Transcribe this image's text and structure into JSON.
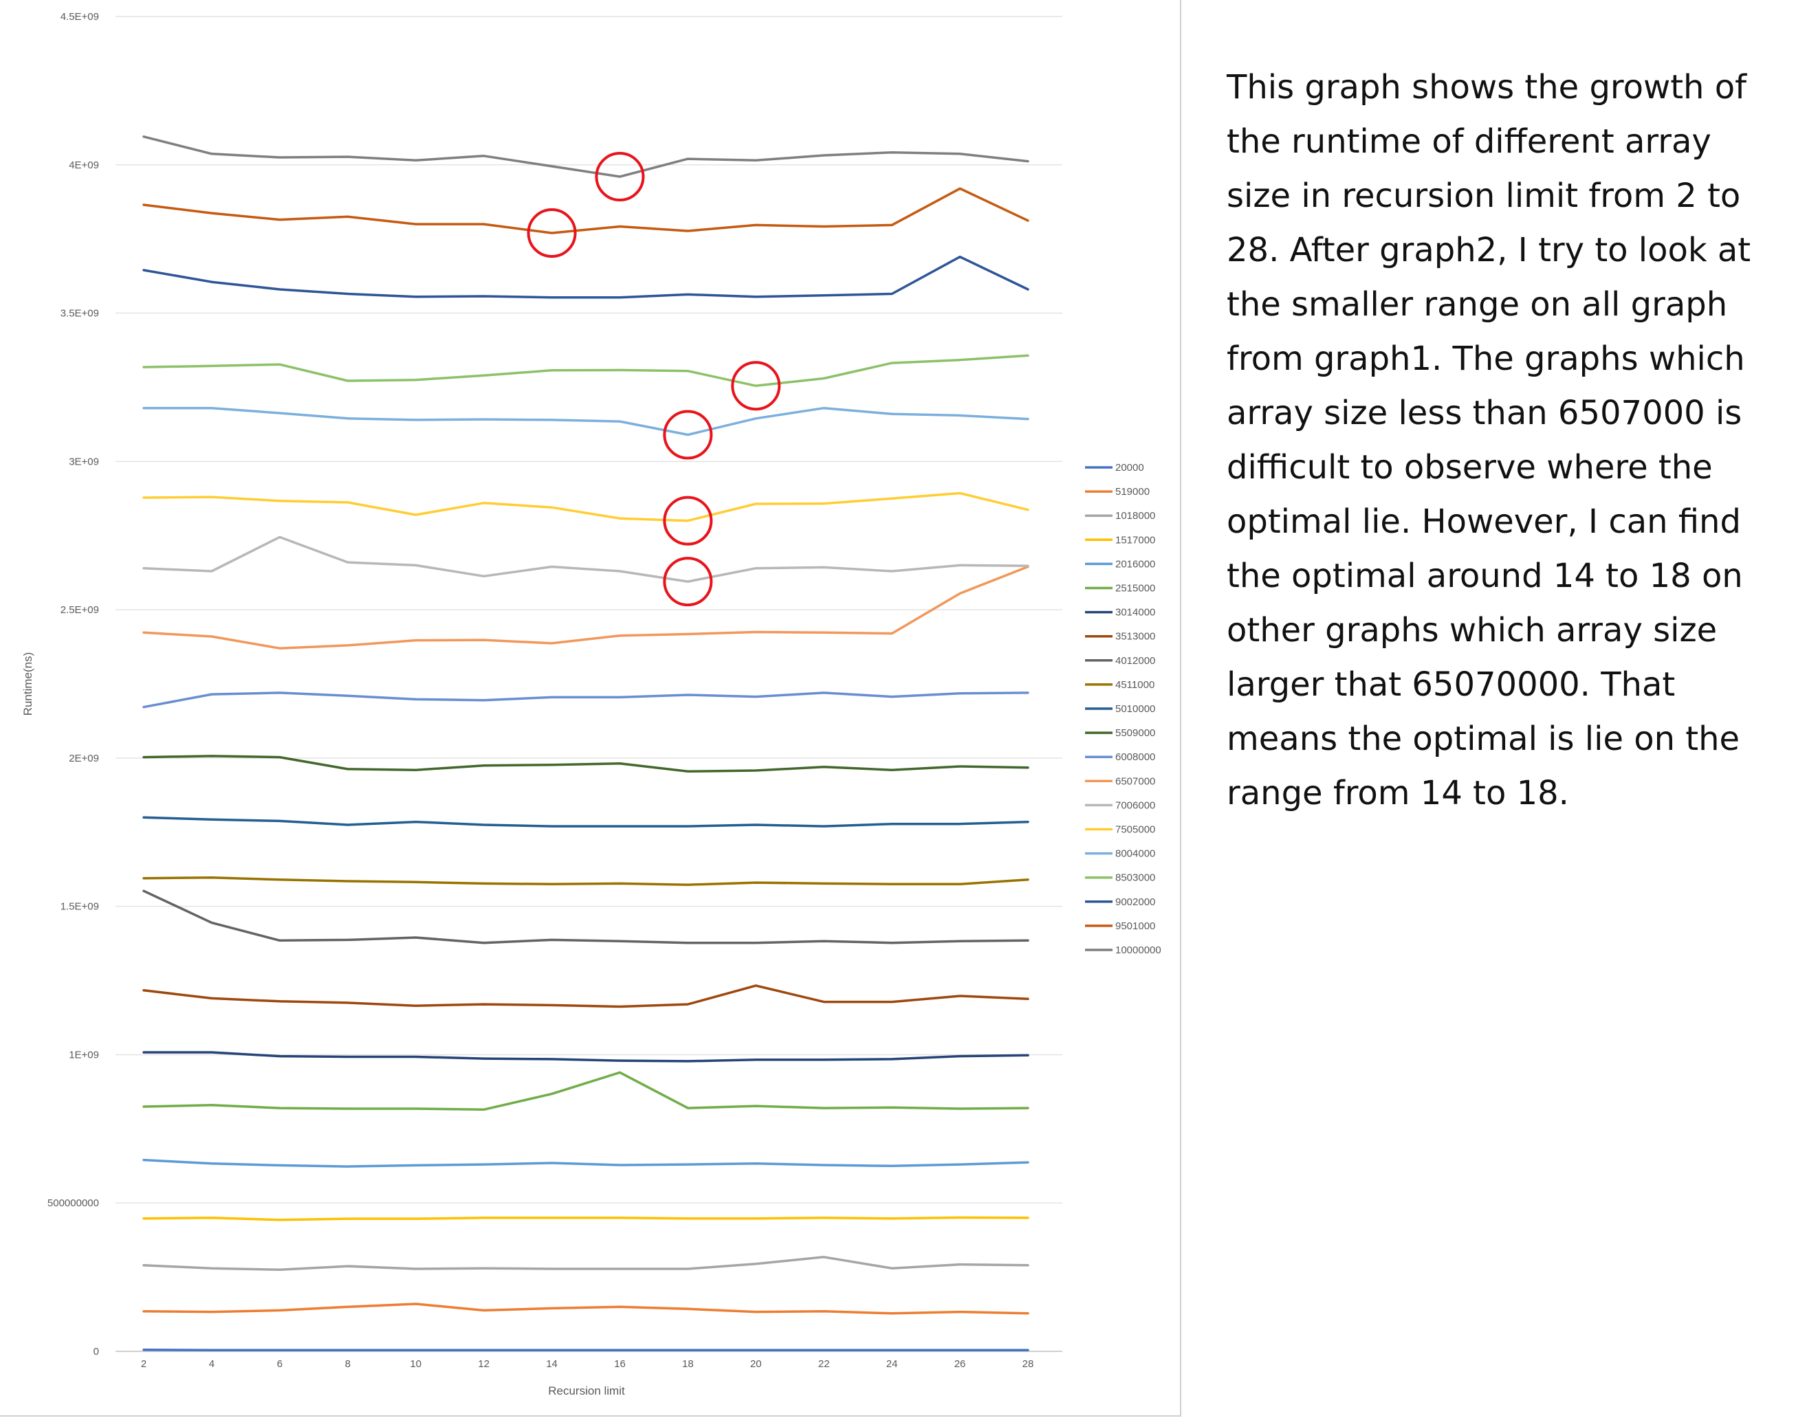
{
  "chart_data": {
    "type": "line",
    "xlabel": "Recursion limit",
    "ylabel": "Runtime(ns)",
    "ylim": [
      0,
      4500000000
    ],
    "yticks": [
      0,
      500000000,
      1000000000,
      1500000000,
      2000000000,
      2500000000,
      3000000000,
      3500000000,
      4000000000,
      4500000000
    ],
    "ytick_labels": [
      "0",
      "500000000",
      "1E+09",
      "1.5E+09",
      "2E+09",
      "2.5E+09",
      "3E+09",
      "3.5E+09",
      "4E+09",
      "4.5E+09"
    ],
    "x": [
      2,
      4,
      6,
      8,
      10,
      12,
      14,
      16,
      18,
      20,
      22,
      24,
      26,
      28
    ],
    "grid": true,
    "legend_position": "right",
    "series": [
      {
        "name": "20000",
        "color": "#4472C4",
        "values": [
          5000000,
          4000000,
          4000000,
          4000000,
          4000000,
          4000000,
          4000000,
          4000000,
          4000000,
          4000000,
          4000000,
          4000000,
          4000000,
          4000000
        ]
      },
      {
        "name": "519000",
        "color": "#ED7D31",
        "values": [
          135000000,
          133000000,
          138000000,
          150000000,
          160000000,
          138000000,
          145000000,
          150000000,
          143000000,
          133000000,
          135000000,
          128000000,
          133000000,
          128000000
        ]
      },
      {
        "name": "1018000",
        "color": "#A5A5A5",
        "values": [
          290000000,
          280000000,
          275000000,
          287000000,
          278000000,
          280000000,
          278000000,
          278000000,
          278000000,
          295000000,
          318000000,
          280000000,
          293000000,
          290000000
        ]
      },
      {
        "name": "1517000",
        "color": "#FFC000",
        "values": [
          448000000,
          450000000,
          443000000,
          447000000,
          447000000,
          450000000,
          450000000,
          450000000,
          448000000,
          448000000,
          450000000,
          448000000,
          451000000,
          450000000
        ]
      },
      {
        "name": "2016000",
        "color": "#5B9BD5",
        "values": [
          645000000,
          633000000,
          627000000,
          623000000,
          627000000,
          630000000,
          635000000,
          628000000,
          630000000,
          633000000,
          628000000,
          625000000,
          630000000,
          637000000
        ]
      },
      {
        "name": "2515000",
        "color": "#70AD47",
        "values": [
          825000000,
          830000000,
          820000000,
          818000000,
          818000000,
          815000000,
          868000000,
          940000000,
          820000000,
          827000000,
          820000000,
          822000000,
          818000000,
          820000000
        ]
      },
      {
        "name": "3014000",
        "color": "#264478",
        "values": [
          1008000000,
          1008000000,
          995000000,
          993000000,
          993000000,
          987000000,
          985000000,
          980000000,
          978000000,
          983000000,
          983000000,
          985000000,
          995000000,
          998000000
        ]
      },
      {
        "name": "3513000",
        "color": "#9E480E",
        "values": [
          1217000000,
          1190000000,
          1180000000,
          1175000000,
          1165000000,
          1170000000,
          1167000000,
          1162000000,
          1170000000,
          1233000000,
          1178000000,
          1178000000,
          1198000000,
          1188000000
        ]
      },
      {
        "name": "4012000",
        "color": "#636363",
        "values": [
          1552000000,
          1445000000,
          1385000000,
          1387000000,
          1395000000,
          1377000000,
          1387000000,
          1383000000,
          1377000000,
          1377000000,
          1383000000,
          1377000000,
          1383000000,
          1385000000
        ]
      },
      {
        "name": "4511000",
        "color": "#997300",
        "values": [
          1595000000,
          1597000000,
          1590000000,
          1585000000,
          1582000000,
          1577000000,
          1575000000,
          1577000000,
          1573000000,
          1580000000,
          1577000000,
          1575000000,
          1575000000,
          1590000000
        ]
      },
      {
        "name": "5010000",
        "color": "#255E91",
        "values": [
          1800000000,
          1793000000,
          1788000000,
          1775000000,
          1785000000,
          1775000000,
          1770000000,
          1770000000,
          1770000000,
          1775000000,
          1770000000,
          1778000000,
          1778000000,
          1785000000
        ]
      },
      {
        "name": "5509000",
        "color": "#43682B",
        "values": [
          2003000000,
          2007000000,
          2003000000,
          1963000000,
          1960000000,
          1975000000,
          1977000000,
          1982000000,
          1955000000,
          1958000000,
          1970000000,
          1960000000,
          1972000000,
          1968000000
        ]
      },
      {
        "name": "6008000",
        "color": "#698ED0",
        "values": [
          2172000000,
          2215000000,
          2220000000,
          2210000000,
          2198000000,
          2195000000,
          2205000000,
          2205000000,
          2213000000,
          2207000000,
          2220000000,
          2207000000,
          2218000000,
          2220000000
        ]
      },
      {
        "name": "6507000",
        "color": "#F1975A",
        "values": [
          2423000000,
          2410000000,
          2370000000,
          2380000000,
          2397000000,
          2398000000,
          2387000000,
          2413000000,
          2418000000,
          2425000000,
          2423000000,
          2420000000,
          2555000000,
          2645000000
        ]
      },
      {
        "name": "7006000",
        "color": "#B7B7B7",
        "values": [
          2640000000,
          2630000000,
          2745000000,
          2660000000,
          2650000000,
          2613000000,
          2645000000,
          2630000000,
          2595000000,
          2640000000,
          2643000000,
          2630000000,
          2650000000,
          2648000000
        ]
      },
      {
        "name": "7505000",
        "color": "#FFCD33",
        "values": [
          2878000000,
          2880000000,
          2867000000,
          2862000000,
          2820000000,
          2860000000,
          2845000000,
          2808000000,
          2800000000,
          2857000000,
          2858000000,
          2875000000,
          2893000000,
          2837000000
        ]
      },
      {
        "name": "8004000",
        "color": "#7CAFDD",
        "values": [
          3180000000,
          3180000000,
          3163000000,
          3145000000,
          3140000000,
          3142000000,
          3140000000,
          3135000000,
          3090000000,
          3145000000,
          3180000000,
          3160000000,
          3155000000,
          3143000000
        ]
      },
      {
        "name": "8503000",
        "color": "#8CC168",
        "values": [
          3318000000,
          3322000000,
          3327000000,
          3272000000,
          3275000000,
          3290000000,
          3307000000,
          3308000000,
          3305000000,
          3255000000,
          3280000000,
          3332000000,
          3342000000,
          3357000000
        ]
      },
      {
        "name": "9002000",
        "color": "#2E5597",
        "values": [
          3645000000,
          3605000000,
          3580000000,
          3565000000,
          3555000000,
          3557000000,
          3553000000,
          3553000000,
          3563000000,
          3555000000,
          3560000000,
          3565000000,
          3690000000,
          3580000000
        ]
      },
      {
        "name": "9501000",
        "color": "#C55A11",
        "values": [
          3865000000,
          3837000000,
          3815000000,
          3825000000,
          3800000000,
          3800000000,
          3770000000,
          3792000000,
          3777000000,
          3797000000,
          3792000000,
          3797000000,
          3920000000,
          3812000000
        ]
      },
      {
        "name": "10000000",
        "color": "#7F7F7F",
        "values": [
          4095000000,
          4037000000,
          4025000000,
          4027000000,
          4015000000,
          4030000000,
          3995000000,
          3960000000,
          4020000000,
          4015000000,
          4032000000,
          4042000000,
          4037000000,
          4012000000
        ]
      }
    ],
    "highlight_markers": [
      {
        "series": "10000000",
        "x": 16,
        "y": 3960000000,
        "color": "#E8141B"
      },
      {
        "series": "9501000",
        "x": 14,
        "y": 3770000000,
        "color": "#E8141B"
      },
      {
        "series": "8503000",
        "x": 20,
        "y": 3255000000,
        "color": "#E8141B"
      },
      {
        "series": "8004000",
        "x": 18,
        "y": 3090000000,
        "color": "#E8141B"
      },
      {
        "series": "7505000",
        "x": 18,
        "y": 2800000000,
        "color": "#E8141B"
      },
      {
        "series": "7006000",
        "x": 18,
        "y": 2595000000,
        "color": "#E8141B"
      }
    ]
  },
  "annotation": {
    "text": "This graph shows the growth of the runtime of different array size in recursion limit from 2 to 28. After graph2, I try to look at the smaller range on all graph from graph1. The graphs which array size less than 6507000 is difficult to observe where the optimal lie. However, I can find the optimal around 14 to 18 on other graphs which array size larger that 65070000. That means the optimal is lie on the range from 14 to 18."
  }
}
